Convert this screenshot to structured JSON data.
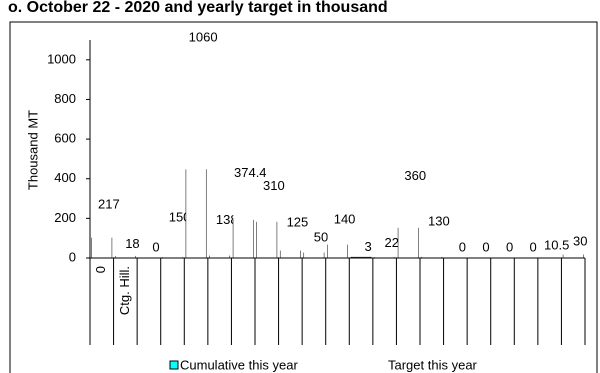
{
  "chart_data": {
    "type": "bar",
    "title": "o. October 22 - 2020 and yearly target in thousand",
    "y_label": "Thousand MT",
    "categories": [
      "0",
      "Ctg. Hill.",
      null,
      null,
      null,
      null,
      null,
      null,
      null,
      null,
      null,
      null,
      null,
      null,
      null,
      null,
      null,
      null,
      null,
      null,
      null
    ],
    "series": [
      {
        "name": "Cumulative this year",
        "color": "#00ffff",
        "values": [
          100,
          8,
          0,
          2,
          445,
          10,
          190,
          180,
          35,
          25,
          65,
          3,
          2,
          150,
          3,
          0,
          0,
          0,
          0,
          0,
          15
        ]
      },
      {
        "name": "Target this year",
        "color": "#ffffff",
        "values": [
          217,
          18,
          0,
          150,
          1060,
          138,
          374.4,
          310,
          125,
          50,
          140,
          3,
          22,
          360,
          130,
          0,
          0,
          0,
          0,
          10.5,
          30
        ]
      }
    ],
    "ylim": [
      0,
      1100
    ],
    "yticks": [
      0,
      200,
      400,
      600,
      800,
      1000
    ]
  }
}
